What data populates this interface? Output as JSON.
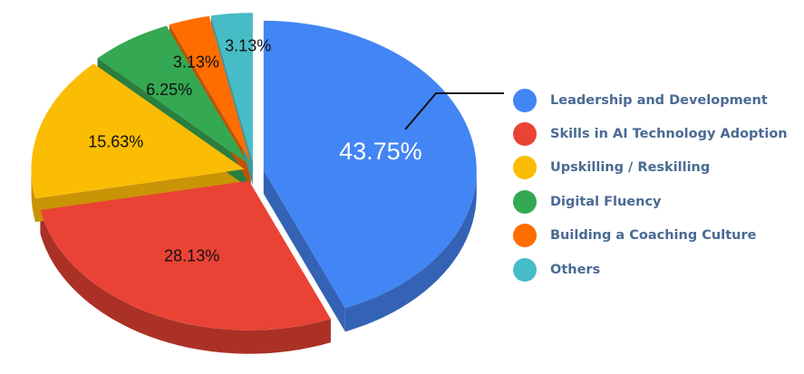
{
  "chart_data": {
    "type": "pie",
    "title": "",
    "categories": [
      "Leadership and Development",
      "Skills in AI Technology Adoption",
      "Upskilling / Reskilling",
      "Digital Fluency",
      "Building a Coaching Culture",
      "Others"
    ],
    "values": [
      43.75,
      28.13,
      15.63,
      6.25,
      3.13,
      3.13
    ],
    "data_labels": [
      "43.75%",
      "28.13%",
      "15.63%",
      "6.25%",
      "3.13%",
      "3.13%"
    ],
    "colors": [
      "#4285f4",
      "#ea4335",
      "#fbbc04",
      "#34a853",
      "#ff6d01",
      "#46bdc6"
    ],
    "side_colors": [
      "#3462b5",
      "#ab3127",
      "#c99405",
      "#2a7e3e",
      "#c25203",
      "#3a9aa1"
    ],
    "style": "3d-exploded",
    "legend_position": "right"
  }
}
